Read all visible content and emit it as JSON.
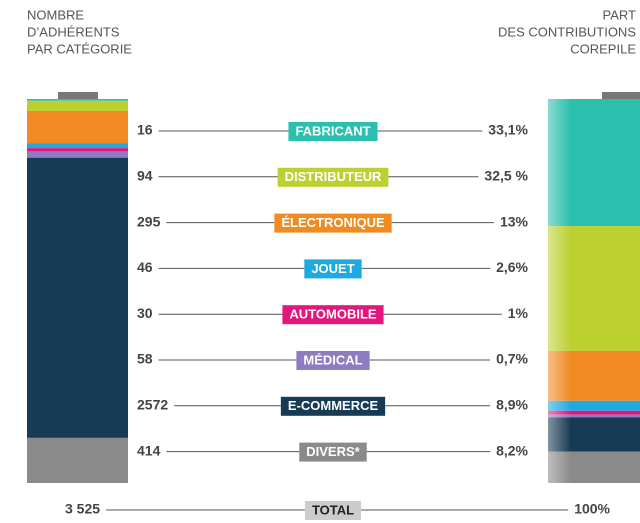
{
  "left_header": [
    "NOMBRE",
    "D’ADHÉRENTS",
    "PAR CATÉGORIE"
  ],
  "right_header": [
    "PART",
    "DES CONTRIBUTIONS",
    "COREPILE"
  ],
  "chart_data": {
    "type": "stacked-battery",
    "categories": [
      "FABRICANT",
      "DISTRIBUTEUR",
      "ÉLECTRONIQUE",
      "JOUET",
      "AUTOMOBILE",
      "MÉDICAL",
      "E-COMMERCE",
      "DIVERS*"
    ],
    "colors": [
      "#2bbfad",
      "#bcd030",
      "#f18a21",
      "#1ea9e1",
      "#e5157e",
      "#8e7cc3",
      "#173b55",
      "#8a8a8a"
    ],
    "members": [
      16,
      94,
      295,
      46,
      30,
      58,
      2572,
      414
    ],
    "shares": [
      33.1,
      32.5,
      13,
      2.6,
      1,
      0.7,
      8.9,
      8.2
    ],
    "share_labels": [
      "33,1%",
      "32,5 %",
      "13%",
      "2,6%",
      "1%",
      "0,7%",
      "8,9%",
      "8,2%"
    ],
    "total_label": "TOTAL",
    "total_members": {
      "value": 3525,
      "label": "3 525"
    },
    "total_share": {
      "value": 100,
      "label": "100%"
    }
  }
}
